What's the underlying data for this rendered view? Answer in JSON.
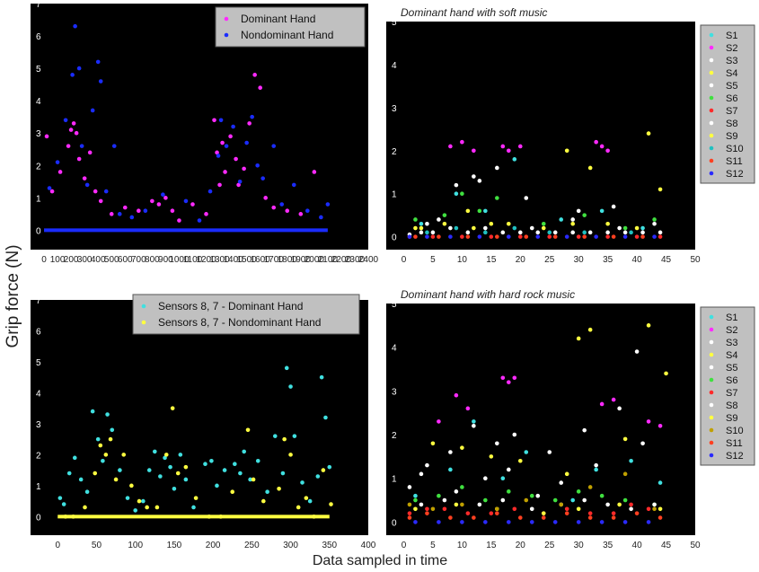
{
  "figure": {
    "ylabel": "Grip force (N)",
    "xlabel": "Data sampled in time"
  },
  "colors": {
    "plot_bg": "#000000",
    "legend_bg": "#c0c0c0",
    "axis_text": "#222222",
    "dominant": "#ff2aff",
    "nondominant": "#1a2cff",
    "sensors_dominant": "#40e0e0",
    "sensors_nondominant": "#ffff40"
  },
  "chart_data": [
    {
      "id": "tl",
      "type": "scatter",
      "title": "",
      "xlim": [
        -100,
        2400
      ],
      "ylim": [
        -0.6,
        7
      ],
      "xticks": [
        0,
        100,
        200,
        300,
        400,
        500,
        600,
        700,
        800,
        900,
        1000,
        1100,
        1200,
        1300,
        1400,
        1500,
        1600,
        1700,
        1800,
        1900,
        2000,
        2100,
        2200,
        2300,
        2400
      ],
      "yticks": [
        0,
        1,
        2,
        3,
        4,
        5,
        6,
        7
      ],
      "legend_position": "top-right",
      "series": [
        {
          "name": "Dominant Hand",
          "color": "#ff2aff",
          "x": [
            20,
            60,
            120,
            180,
            200,
            220,
            240,
            260,
            300,
            340,
            380,
            420,
            500,
            600,
            700,
            800,
            850,
            900,
            950,
            1000,
            1100,
            1200,
            1260,
            1280,
            1300,
            1320,
            1340,
            1380,
            1420,
            1440,
            1480,
            1520,
            1560,
            1600,
            1640,
            1700,
            1800,
            1900,
            2000
          ],
          "y": [
            2.9,
            1.2,
            1.8,
            2.6,
            3.1,
            3.3,
            3.0,
            2.2,
            1.6,
            2.4,
            1.2,
            0.9,
            0.5,
            0.7,
            0.6,
            0.9,
            0.8,
            1.0,
            0.6,
            0.3,
            0.8,
            0.5,
            3.4,
            2.4,
            1.4,
            2.7,
            1.8,
            2.9,
            2.2,
            1.4,
            1.9,
            3.3,
            4.8,
            4.4,
            1.0,
            0.7,
            0.6,
            0.5,
            1.8
          ]
        },
        {
          "name": "Nondominant Hand",
          "color": "#1a2cff",
          "x": [
            40,
            100,
            160,
            210,
            230,
            260,
            280,
            320,
            360,
            400,
            420,
            460,
            520,
            560,
            650,
            750,
            880,
            1050,
            1150,
            1230,
            1290,
            1310,
            1350,
            1400,
            1450,
            1500,
            1540,
            1580,
            1620,
            1700,
            1760,
            1850,
            1950,
            2050,
            2100
          ],
          "y": [
            1.3,
            2.1,
            3.4,
            4.8,
            6.3,
            5.0,
            2.6,
            1.4,
            3.7,
            5.2,
            4.6,
            1.2,
            2.6,
            0.5,
            0.4,
            0.6,
            1.1,
            0.9,
            0.3,
            1.2,
            2.3,
            3.4,
            2.6,
            3.2,
            1.5,
            2.7,
            3.5,
            2.0,
            1.6,
            2.6,
            0.8,
            1.4,
            0.6,
            0.4,
            0.8
          ]
        }
      ]
    },
    {
      "id": "tr",
      "type": "scatter",
      "title": "Dominant hand with soft music",
      "xlim": [
        -3,
        50
      ],
      "ylim": [
        -0.3,
        5
      ],
      "xticks": [
        0,
        5,
        10,
        15,
        20,
        25,
        30,
        35,
        40,
        45,
        50
      ],
      "yticks": [
        0,
        1,
        2,
        3,
        4,
        5
      ],
      "legend_position": "right",
      "series": [
        {
          "name": "S1",
          "color": "#40e0e0",
          "x": [
            3,
            9,
            14,
            19,
            27,
            34,
            41
          ],
          "y": [
            0.3,
            1.0,
            0.6,
            1.8,
            0.4,
            0.6,
            0.2
          ]
        },
        {
          "name": "S2",
          "color": "#ff2aff",
          "x": [
            8,
            10,
            12,
            17,
            18,
            20,
            33,
            34,
            35
          ],
          "y": [
            2.1,
            2.2,
            2.0,
            2.1,
            2.0,
            2.1,
            2.2,
            2.1,
            2.0
          ]
        },
        {
          "name": "S3",
          "color": "#ffffff",
          "x": [
            4,
            9,
            13,
            16,
            21,
            29,
            36,
            43
          ],
          "y": [
            0.3,
            1.2,
            1.3,
            1.6,
            0.9,
            0.4,
            0.7,
            0.3
          ]
        },
        {
          "name": "S4",
          "color": "#ffff40",
          "x": [
            3,
            11,
            15,
            28,
            32,
            42,
            44
          ],
          "y": [
            0.2,
            0.6,
            0.3,
            2.0,
            1.6,
            2.4,
            1.1
          ]
        },
        {
          "name": "S5",
          "color": "#ffffff",
          "x": [
            6,
            12,
            22,
            30,
            37
          ],
          "y": [
            0.4,
            1.4,
            0.2,
            0.6,
            0.2
          ]
        },
        {
          "name": "S6",
          "color": "#40e040",
          "x": [
            2,
            7,
            10,
            13,
            16,
            24,
            31,
            38,
            43
          ],
          "y": [
            0.4,
            0.5,
            1.0,
            0.6,
            0.9,
            0.3,
            0.5,
            0.2,
            0.4
          ]
        },
        {
          "name": "S7",
          "color": "#ff2a2a",
          "x": [
            1,
            5,
            10,
            15,
            20,
            25,
            30,
            35,
            40,
            44
          ],
          "y": [
            0,
            0,
            0,
            0,
            0,
            0,
            0,
            0,
            0,
            0
          ]
        },
        {
          "name": "S8",
          "color": "#ffffff",
          "x": [
            1,
            3,
            5,
            8,
            11,
            14,
            17,
            20,
            23,
            26,
            29,
            32,
            35,
            38,
            41,
            44
          ],
          "y": [
            0.05,
            0.1,
            0.1,
            0.2,
            0.1,
            0.2,
            0.1,
            0.1,
            0.1,
            0.1,
            0.1,
            0.1,
            0.1,
            0.1,
            0.1,
            0.1
          ]
        },
        {
          "name": "S9",
          "color": "#ffff40",
          "x": [
            2,
            7,
            12,
            18,
            24,
            29,
            35,
            40
          ],
          "y": [
            0.2,
            0.3,
            0.2,
            0.3,
            0.2,
            0.3,
            0.3,
            0.2
          ]
        },
        {
          "name": "S10",
          "color": "#20c0c0",
          "x": [
            4,
            9,
            14,
            19,
            25,
            31,
            39
          ],
          "y": [
            0.1,
            0.2,
            0.1,
            0.2,
            0.1,
            0.1,
            0.1
          ]
        },
        {
          "name": "S11",
          "color": "#ff4020",
          "x": [
            2,
            6,
            11,
            16,
            21,
            26,
            31,
            36,
            41
          ],
          "y": [
            0,
            0,
            0,
            0,
            0,
            0,
            0,
            0,
            0
          ]
        },
        {
          "name": "S12",
          "color": "#2a2aff",
          "x": [
            1,
            4,
            8,
            13,
            18,
            23,
            28,
            33,
            38,
            43
          ],
          "y": [
            0,
            0,
            0,
            0,
            0,
            0,
            0,
            0,
            0,
            0
          ]
        }
      ]
    },
    {
      "id": "bl",
      "type": "scatter",
      "title": "",
      "xlim": [
        -35,
        400
      ],
      "ylim": [
        -0.6,
        7
      ],
      "xticks": [
        0,
        50,
        100,
        150,
        200,
        250,
        300,
        350,
        400
      ],
      "yticks": [
        0,
        1,
        2,
        3,
        4,
        5,
        6,
        7
      ],
      "legend_position": "top-right",
      "series": [
        {
          "name": "Sensors 8, 7 - Dominant Hand",
          "color": "#40e0e0",
          "x": [
            3,
            8,
            15,
            22,
            30,
            38,
            45,
            52,
            58,
            64,
            70,
            80,
            90,
            100,
            110,
            118,
            125,
            132,
            138,
            145,
            150,
            158,
            165,
            175,
            190,
            198,
            205,
            215,
            228,
            235,
            240,
            248,
            258,
            270,
            280,
            290,
            295,
            300,
            305,
            315,
            325,
            335,
            340,
            345,
            350
          ],
          "y": [
            0.6,
            0.4,
            1.4,
            1.9,
            1.2,
            0.8,
            3.4,
            2.5,
            1.8,
            3.3,
            2.8,
            1.5,
            0.6,
            0.2,
            0.5,
            1.5,
            2.1,
            1.3,
            1.9,
            1.6,
            0.9,
            2.0,
            1.2,
            0.3,
            1.7,
            1.8,
            1.0,
            1.5,
            1.7,
            1.4,
            2.1,
            1.2,
            1.8,
            0.8,
            2.6,
            1.4,
            4.8,
            4.2,
            2.6,
            1.1,
            0.5,
            1.3,
            4.5,
            3.2,
            1.6
          ]
        },
        {
          "name": "Sensors 8, 7 - Nondominant Hand",
          "color": "#ffff40",
          "x": [
            10,
            20,
            35,
            48,
            55,
            62,
            68,
            75,
            85,
            95,
            105,
            115,
            128,
            140,
            148,
            155,
            165,
            178,
            195,
            210,
            225,
            245,
            252,
            265,
            285,
            292,
            300,
            310,
            320,
            330,
            342,
            352
          ],
          "y": [
            0,
            0,
            0.3,
            1.4,
            2.3,
            2.0,
            2.5,
            1.2,
            2.0,
            1.0,
            0.5,
            0.3,
            0.3,
            2.0,
            3.5,
            1.4,
            1.6,
            0.6,
            0,
            0,
            0.8,
            2.8,
            1.2,
            0.5,
            0.9,
            2.5,
            2.0,
            0.3,
            0.6,
            0,
            1.5,
            0.4
          ]
        }
      ]
    },
    {
      "id": "br",
      "type": "scatter",
      "title": "Dominant hand with hard rock music",
      "xlim": [
        -3,
        50
      ],
      "ylim": [
        -0.3,
        5
      ],
      "xticks": [
        0,
        5,
        10,
        15,
        20,
        25,
        30,
        35,
        40,
        45,
        50
      ],
      "yticks": [
        0,
        1,
        2,
        3,
        4,
        5
      ],
      "legend_position": "right",
      "series": [
        {
          "name": "S1",
          "color": "#40e0e0",
          "x": [
            2,
            8,
            12,
            17,
            21,
            29,
            33,
            39,
            44
          ],
          "y": [
            0.6,
            1.2,
            2.3,
            1.0,
            1.6,
            0.5,
            1.2,
            1.4,
            0.9
          ]
        },
        {
          "name": "S2",
          "color": "#ff2aff",
          "x": [
            6,
            9,
            11,
            17,
            18,
            19,
            34,
            36,
            42,
            44
          ],
          "y": [
            2.3,
            2.9,
            2.6,
            3.3,
            3.2,
            3.3,
            2.7,
            2.8,
            2.3,
            2.2
          ]
        },
        {
          "name": "S3",
          "color": "#ffffff",
          "x": [
            3,
            8,
            12,
            16,
            19,
            25,
            31,
            37,
            41
          ],
          "y": [
            1.1,
            1.6,
            2.2,
            1.8,
            2.0,
            1.6,
            2.1,
            2.6,
            1.8
          ]
        },
        {
          "name": "S4",
          "color": "#ffff40",
          "x": [
            5,
            10,
            15,
            20,
            28,
            30,
            32,
            38,
            42,
            45
          ],
          "y": [
            1.8,
            1.7,
            1.5,
            1.4,
            1.1,
            4.2,
            4.4,
            1.9,
            4.5,
            3.4
          ]
        },
        {
          "name": "S5",
          "color": "#ffffff",
          "x": [
            1,
            4,
            9,
            14,
            18,
            23,
            27,
            33,
            40
          ],
          "y": [
            0.8,
            1.3,
            0.7,
            1.0,
            1.2,
            0.6,
            0.9,
            1.3,
            3.9
          ]
        },
        {
          "name": "S6",
          "color": "#40e040",
          "x": [
            2,
            6,
            10,
            14,
            18,
            22,
            26,
            30,
            34,
            38,
            43
          ],
          "y": [
            0.5,
            0.6,
            0.8,
            0.5,
            0.7,
            0.6,
            0.5,
            0.7,
            0.6,
            0.5,
            0.4
          ]
        },
        {
          "name": "S7",
          "color": "#ff2a2a",
          "x": [
            1,
            4,
            7,
            11,
            15,
            19,
            24,
            28,
            32,
            36,
            39,
            42
          ],
          "y": [
            0.2,
            0.3,
            0.3,
            0.2,
            0.2,
            0.3,
            0.2,
            0.3,
            0.2,
            0.2,
            0.4,
            0.3
          ]
        },
        {
          "name": "S8",
          "color": "#ffffff",
          "x": [
            3,
            7,
            13,
            17,
            22,
            27,
            31,
            35,
            39,
            43
          ],
          "y": [
            0.4,
            0.5,
            0.4,
            0.5,
            0.3,
            0.4,
            0.5,
            0.4,
            0.3,
            0.4
          ]
        },
        {
          "name": "S9",
          "color": "#ffff40",
          "x": [
            2,
            9,
            16,
            24,
            30,
            37,
            44
          ],
          "y": [
            0.3,
            0.4,
            0.3,
            0.2,
            0.3,
            0.4,
            0.3
          ]
        },
        {
          "name": "S10",
          "color": "#c0a000",
          "x": [
            1,
            5,
            10,
            16,
            21,
            27,
            32,
            38,
            43
          ],
          "y": [
            0.4,
            0.3,
            0.4,
            0.3,
            0.5,
            0.4,
            0.8,
            1.1,
            0.3
          ]
        },
        {
          "name": "S11",
          "color": "#ff4020",
          "x": [
            1,
            4,
            8,
            12,
            16,
            20,
            24,
            28,
            32,
            36,
            40,
            44
          ],
          "y": [
            0.1,
            0.2,
            0.1,
            0.1,
            0.2,
            0.1,
            0.1,
            0.2,
            0.1,
            0.1,
            0.2,
            0.1
          ]
        },
        {
          "name": "S12",
          "color": "#2a2aff",
          "x": [
            2,
            6,
            10,
            14,
            18,
            22,
            26,
            30,
            34,
            38,
            42
          ],
          "y": [
            0,
            0,
            0,
            0,
            0,
            0,
            0,
            0,
            0,
            0,
            0
          ]
        }
      ]
    }
  ]
}
